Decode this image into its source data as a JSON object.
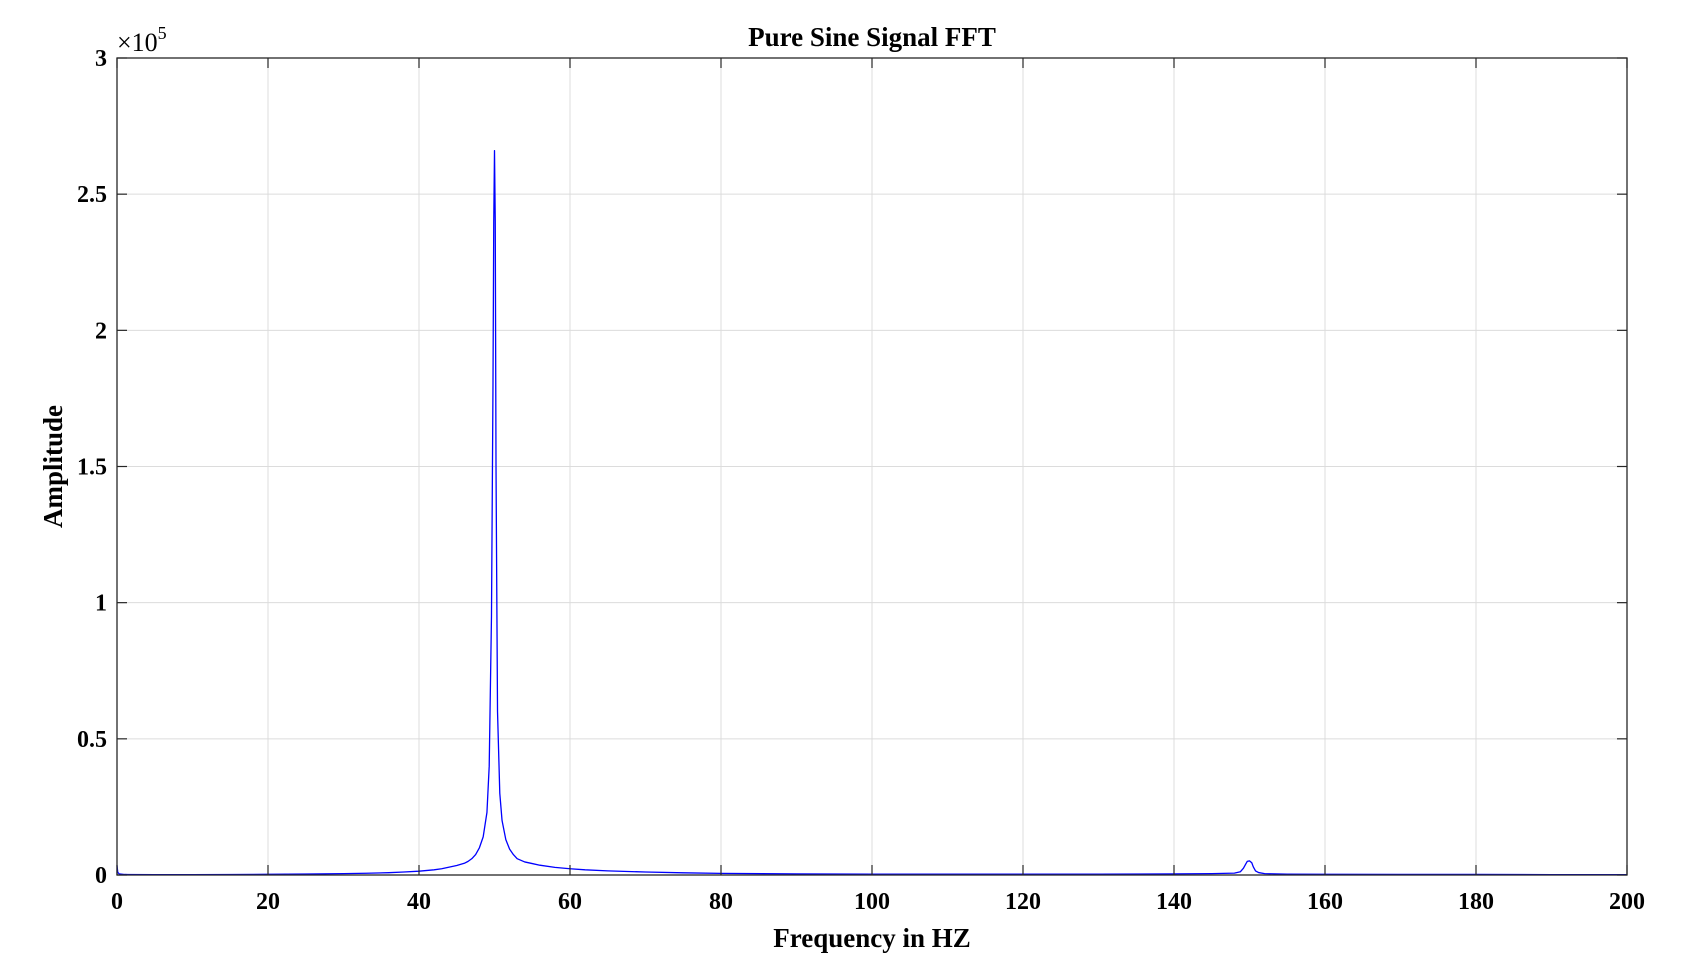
{
  "chart_data": {
    "type": "line",
    "title": "Pure Sine Signal FFT",
    "xlabel": "Frequency in HZ",
    "ylabel": "Amplitude",
    "xlim": [
      0,
      200
    ],
    "ylim": [
      0,
      300000
    ],
    "y_multiplier": {
      "base": "×10",
      "exponent": "5"
    },
    "x_ticks": [
      0,
      20,
      40,
      60,
      80,
      100,
      120,
      140,
      160,
      180,
      200
    ],
    "x_tick_labels": [
      "0",
      "20",
      "40",
      "60",
      "80",
      "100",
      "120",
      "140",
      "160",
      "180",
      "200"
    ],
    "y_ticks": [
      0,
      50000,
      100000,
      150000,
      200000,
      250000,
      300000
    ],
    "y_tick_labels": [
      "0",
      "0.5",
      "1",
      "1.5",
      "2",
      "2.5",
      "3"
    ],
    "grid": true,
    "series": [
      {
        "color": "#0000ff",
        "x": [
          0,
          0.1,
          0.3,
          1,
          5,
          10,
          15,
          20,
          25,
          30,
          33,
          36,
          38,
          40,
          42,
          43,
          44,
          45,
          46,
          46.5,
          47,
          47.5,
          48,
          48.5,
          49,
          49.3,
          49.6,
          49.8,
          49.9,
          50,
          50.1,
          50.2,
          50.4,
          50.7,
          51,
          51.5,
          52,
          52.5,
          53,
          54,
          55,
          56,
          58,
          60,
          62,
          65,
          70,
          75,
          80,
          90,
          100,
          110,
          120,
          130,
          140,
          145,
          148,
          148.8,
          149.2,
          149.5,
          149.7,
          150,
          150.3,
          150.5,
          150.8,
          151.2,
          152,
          155,
          160,
          170,
          180,
          190,
          200
        ],
        "y": [
          3500,
          1000,
          400,
          200,
          150,
          150,
          180,
          250,
          350,
          500,
          650,
          850,
          1100,
          1400,
          1900,
          2300,
          2900,
          3500,
          4300,
          5000,
          6000,
          7500,
          10000,
          14000,
          23000,
          40000,
          95000,
          180000,
          240000,
          266000,
          240000,
          150000,
          60000,
          30000,
          20000,
          13000,
          9500,
          7500,
          6000,
          4800,
          4200,
          3600,
          2800,
          2300,
          1900,
          1500,
          1100,
          800,
          600,
          400,
          300,
          300,
          300,
          300,
          400,
          500,
          700,
          1200,
          2500,
          4000,
          5000,
          5200,
          4500,
          3000,
          1500,
          900,
          500,
          300,
          250,
          200,
          200,
          150,
          150
        ]
      }
    ]
  }
}
